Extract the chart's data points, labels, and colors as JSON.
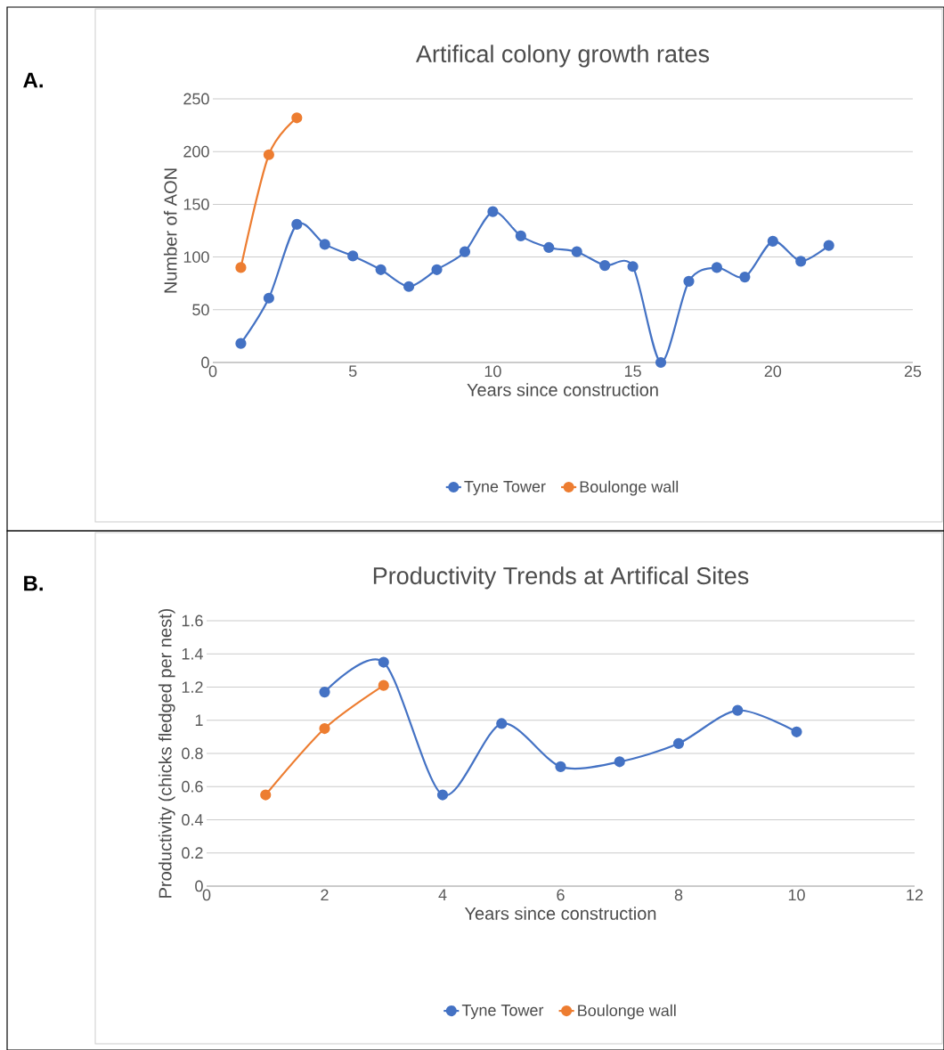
{
  "chart_data": [
    {
      "type": "line",
      "title": "Artifical colony growth rates",
      "xlabel": "Years since construction",
      "ylabel": "Number of AON",
      "annotations": [
        "A."
      ],
      "xlim": [
        0,
        25
      ],
      "xticks": [
        0,
        5,
        10,
        15,
        20,
        25
      ],
      "ylim": [
        0,
        250
      ],
      "yticks": [
        0,
        50,
        100,
        150,
        200,
        250
      ],
      "grid": "y",
      "legend": "bottom",
      "marker": "circle",
      "line_style": "solid",
      "series": [
        {
          "name": "Tyne Tower",
          "color": "#4472c4",
          "x": [
            1,
            2,
            3,
            4,
            5,
            6,
            7,
            8,
            9,
            10,
            11,
            12,
            13,
            14,
            15,
            16,
            17,
            18,
            19,
            20,
            21,
            22
          ],
          "values": [
            18,
            61,
            131,
            112,
            101,
            88,
            72,
            88,
            105,
            143,
            120,
            109,
            105,
            92,
            91,
            0,
            77,
            90,
            81,
            115,
            96,
            111
          ]
        },
        {
          "name": "Boulonge wall",
          "color": "#ed7d31",
          "x": [
            1,
            2,
            3
          ],
          "values": [
            90,
            197,
            232
          ]
        }
      ]
    },
    {
      "type": "line",
      "title": "Productivity Trends at Artifical Sites",
      "xlabel": "Years since construction",
      "ylabel": "Productivity (chicks fledged  per nest)",
      "annotations": [
        "B."
      ],
      "xlim": [
        0,
        12
      ],
      "xticks": [
        0,
        2,
        4,
        6,
        8,
        10,
        12
      ],
      "ylim": [
        0,
        1.6
      ],
      "yticks": [
        0,
        0.2,
        0.4,
        0.6,
        0.8,
        1,
        1.2,
        1.4,
        1.6
      ],
      "grid": "y",
      "legend": "bottom",
      "marker": "circle",
      "line_style": "solid",
      "series": [
        {
          "name": "Tyne Tower",
          "color": "#4472c4",
          "x": [
            2,
            3,
            4,
            5,
            6,
            7,
            8,
            9,
            10
          ],
          "values": [
            1.17,
            1.35,
            0.55,
            0.98,
            0.72,
            0.75,
            0.86,
            1.06,
            0.93
          ]
        },
        {
          "name": "Boulonge wall",
          "color": "#ed7d31",
          "x": [
            1,
            2,
            3
          ],
          "values": [
            0.55,
            0.95,
            1.21
          ]
        }
      ]
    }
  ]
}
